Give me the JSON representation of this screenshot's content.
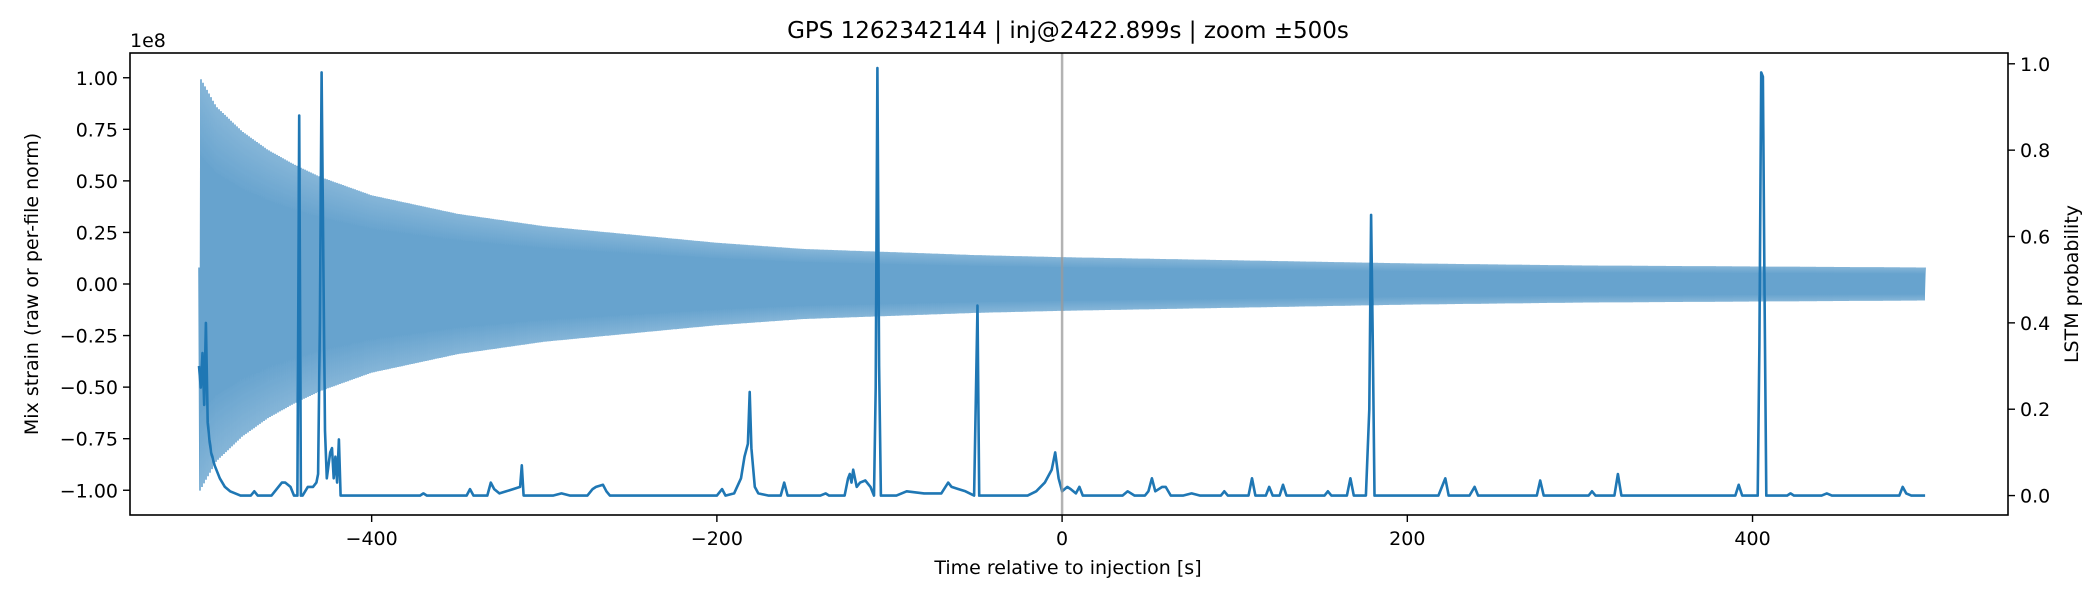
{
  "chart_data": {
    "type": "line",
    "title": "GPS 1262342144 | inj@2422.899s | zoom ±500s",
    "xlabel": "Time relative to injection [s]",
    "ylabel_left": "Mix strain (raw or per-file norm)",
    "ylabel_right": "LSTM probability",
    "offset_text_left": "1e8",
    "xlim": [
      -540,
      548
    ],
    "ylim_left": [
      -1.12,
      1.12
    ],
    "ylim_right": [
      -0.045,
      1.025
    ],
    "xticks": [
      -400,
      -200,
      0,
      200,
      400
    ],
    "xtick_labels": [
      "−400",
      "−200",
      "0",
      "200",
      "400"
    ],
    "yticks_left": [
      -1.0,
      -0.75,
      -0.5,
      -0.25,
      0.0,
      0.25,
      0.5,
      0.75,
      1.0
    ],
    "ytick_labels_left": [
      "−1.00",
      "−0.75",
      "−0.50",
      "−0.25",
      "0.00",
      "0.25",
      "0.50",
      "0.75",
      "1.00"
    ],
    "yticks_right": [
      0.0,
      0.2,
      0.4,
      0.6,
      0.8,
      1.0
    ],
    "ytick_labels_right": [
      "0.0",
      "0.2",
      "0.4",
      "0.6",
      "0.8",
      "1.0"
    ],
    "injection_line_x": 0,
    "grid": false,
    "series": [
      {
        "kind": "strain-envelope",
        "axis": "left",
        "color": "#5f9ecb",
        "x_range": [
          -500,
          500
        ],
        "envelope": [
          [
            -500,
            1.01
          ],
          [
            -490,
            0.86
          ],
          [
            -475,
            0.74
          ],
          [
            -460,
            0.65
          ],
          [
            -445,
            0.58
          ],
          [
            -430,
            0.52
          ],
          [
            -400,
            0.43
          ],
          [
            -350,
            0.34
          ],
          [
            -300,
            0.28
          ],
          [
            -250,
            0.24
          ],
          [
            -200,
            0.2
          ],
          [
            -150,
            0.17
          ],
          [
            -100,
            0.155
          ],
          [
            -50,
            0.14
          ],
          [
            0,
            0.13
          ],
          [
            100,
            0.115
          ],
          [
            200,
            0.1
          ],
          [
            300,
            0.09
          ],
          [
            400,
            0.085
          ],
          [
            500,
            0.08
          ]
        ],
        "center": 0.0
      },
      {
        "kind": "probability",
        "axis": "right",
        "color": "#1f77b4",
        "points": [
          [
            -500,
            0.3
          ],
          [
            -499,
            0.25
          ],
          [
            -498,
            0.33
          ],
          [
            -497,
            0.21
          ],
          [
            -496,
            0.4
          ],
          [
            -495,
            0.17
          ],
          [
            -494,
            0.13
          ],
          [
            -493,
            0.1
          ],
          [
            -491,
            0.07
          ],
          [
            -488,
            0.04
          ],
          [
            -485,
            0.02
          ],
          [
            -482,
            0.01
          ],
          [
            -476,
            0.0
          ],
          [
            -470,
            0.0
          ],
          [
            -468,
            0.01
          ],
          [
            -466,
            0.0
          ],
          [
            -458,
            0.0
          ],
          [
            -454,
            0.02
          ],
          [
            -452,
            0.03
          ],
          [
            -450,
            0.03
          ],
          [
            -447,
            0.02
          ],
          [
            -445,
            0.0
          ],
          [
            -443,
            0.0
          ],
          [
            -442,
            0.88
          ],
          [
            -441,
            0.0
          ],
          [
            -440,
            0.0
          ],
          [
            -437,
            0.02
          ],
          [
            -434,
            0.02
          ],
          [
            -432,
            0.03
          ],
          [
            -431,
            0.05
          ],
          [
            -430,
            0.4
          ],
          [
            -429,
            0.98
          ],
          [
            -428,
            0.55
          ],
          [
            -427,
            0.15
          ],
          [
            -426,
            0.04
          ],
          [
            -424,
            0.1
          ],
          [
            -423,
            0.11
          ],
          [
            -422,
            0.04
          ],
          [
            -421,
            0.09
          ],
          [
            -420,
            0.03
          ],
          [
            -419,
            0.13
          ],
          [
            -418,
            0.0
          ],
          [
            -410,
            0.0
          ],
          [
            -372,
            0.0
          ],
          [
            -370,
            0.005
          ],
          [
            -368,
            0.0
          ],
          [
            -345,
            0.0
          ],
          [
            -343,
            0.015
          ],
          [
            -341,
            0.0
          ],
          [
            -333,
            0.0
          ],
          [
            -331,
            0.03
          ],
          [
            -329,
            0.015
          ],
          [
            -326,
            0.005
          ],
          [
            -322,
            0.01
          ],
          [
            -318,
            0.015
          ],
          [
            -314,
            0.02
          ],
          [
            -313,
            0.07
          ],
          [
            -312,
            0.0
          ],
          [
            -295,
            0.0
          ],
          [
            -290,
            0.005
          ],
          [
            -285,
            0.0
          ],
          [
            -275,
            0.0
          ],
          [
            -272,
            0.015
          ],
          [
            -270,
            0.02
          ],
          [
            -266,
            0.025
          ],
          [
            -264,
            0.01
          ],
          [
            -262,
            0.0
          ],
          [
            -200,
            0.0
          ],
          [
            -197,
            0.015
          ],
          [
            -195,
            0.0
          ],
          [
            -190,
            0.005
          ],
          [
            -186,
            0.04
          ],
          [
            -184,
            0.09
          ],
          [
            -182,
            0.12
          ],
          [
            -181,
            0.24
          ],
          [
            -180,
            0.11
          ],
          [
            -178,
            0.02
          ],
          [
            -176,
            0.005
          ],
          [
            -170,
            0.0
          ],
          [
            -163,
            0.0
          ],
          [
            -161,
            0.03
          ],
          [
            -159,
            0.0
          ],
          [
            -140,
            0.0
          ],
          [
            -137,
            0.005
          ],
          [
            -135,
            0.0
          ],
          [
            -126,
            0.0
          ],
          [
            -124,
            0.04
          ],
          [
            -123,
            0.05
          ],
          [
            -122,
            0.03
          ],
          [
            -121,
            0.06
          ],
          [
            -119,
            0.02
          ],
          [
            -117,
            0.03
          ],
          [
            -114,
            0.035
          ],
          [
            -111,
            0.02
          ],
          [
            -109,
            0.0
          ],
          [
            -108,
            0.25
          ],
          [
            -107,
            0.99
          ],
          [
            -106,
            0.3
          ],
          [
            -105,
            0.0
          ],
          [
            -96,
            0.0
          ],
          [
            -90,
            0.01
          ],
          [
            -80,
            0.005
          ],
          [
            -70,
            0.005
          ],
          [
            -66,
            0.03
          ],
          [
            -64,
            0.02
          ],
          [
            -60,
            0.015
          ],
          [
            -56,
            0.01
          ],
          [
            -51,
            0.0
          ],
          [
            -49,
            0.44
          ],
          [
            -48,
            0.0
          ],
          [
            -20,
            0.0
          ],
          [
            -15,
            0.01
          ],
          [
            -10,
            0.03
          ],
          [
            -6,
            0.06
          ],
          [
            -4,
            0.1
          ],
          [
            -2,
            0.04
          ],
          [
            0,
            0.01
          ],
          [
            3,
            0.02
          ],
          [
            5,
            0.015
          ],
          [
            8,
            0.005
          ],
          [
            10,
            0.02
          ],
          [
            12,
            0.0
          ],
          [
            35,
            0.0
          ],
          [
            38,
            0.01
          ],
          [
            42,
            0.0
          ],
          [
            48,
            0.0
          ],
          [
            50,
            0.01
          ],
          [
            52,
            0.04
          ],
          [
            54,
            0.01
          ],
          [
            58,
            0.02
          ],
          [
            60,
            0.02
          ],
          [
            63,
            0.0
          ],
          [
            70,
            0.0
          ],
          [
            75,
            0.005
          ],
          [
            80,
            0.0
          ],
          [
            92,
            0.0
          ],
          [
            94,
            0.01
          ],
          [
            96,
            0.0
          ],
          [
            108,
            0.0
          ],
          [
            110,
            0.04
          ],
          [
            112,
            0.0
          ],
          [
            118,
            0.0
          ],
          [
            120,
            0.02
          ],
          [
            122,
            0.0
          ],
          [
            126,
            0.0
          ],
          [
            128,
            0.025
          ],
          [
            130,
            0.0
          ],
          [
            152,
            0.0
          ],
          [
            154,
            0.01
          ],
          [
            156,
            0.0
          ],
          [
            165,
            0.0
          ],
          [
            167,
            0.04
          ],
          [
            169,
            0.0
          ],
          [
            176,
            0.0
          ],
          [
            178,
            0.2
          ],
          [
            179,
            0.65
          ],
          [
            180,
            0.35
          ],
          [
            181,
            0.0
          ],
          [
            218,
            0.0
          ],
          [
            221,
            0.03
          ],
          [
            222,
            0.04
          ],
          [
            224,
            0.0
          ],
          [
            236,
            0.0
          ],
          [
            239,
            0.02
          ],
          [
            241,
            0.0
          ],
          [
            275,
            0.0
          ],
          [
            277,
            0.035
          ],
          [
            279,
            0.0
          ],
          [
            305,
            0.0
          ],
          [
            307,
            0.01
          ],
          [
            309,
            0.0
          ],
          [
            320,
            0.0
          ],
          [
            322,
            0.05
          ],
          [
            324,
            0.0
          ],
          [
            390,
            0.0
          ],
          [
            392,
            0.025
          ],
          [
            394,
            0.0
          ],
          [
            403,
            0.0
          ],
          [
            404,
            0.35
          ],
          [
            405,
            0.98
          ],
          [
            406,
            0.97
          ],
          [
            407,
            0.45
          ],
          [
            408,
            0.0
          ],
          [
            420,
            0.0
          ],
          [
            422,
            0.005
          ],
          [
            424,
            0.0
          ],
          [
            440,
            0.0
          ],
          [
            443,
            0.005
          ],
          [
            446,
            0.0
          ],
          [
            485,
            0.0
          ],
          [
            487,
            0.02
          ],
          [
            489,
            0.005
          ],
          [
            492,
            0.0
          ],
          [
            500,
            0.0
          ]
        ]
      }
    ]
  }
}
